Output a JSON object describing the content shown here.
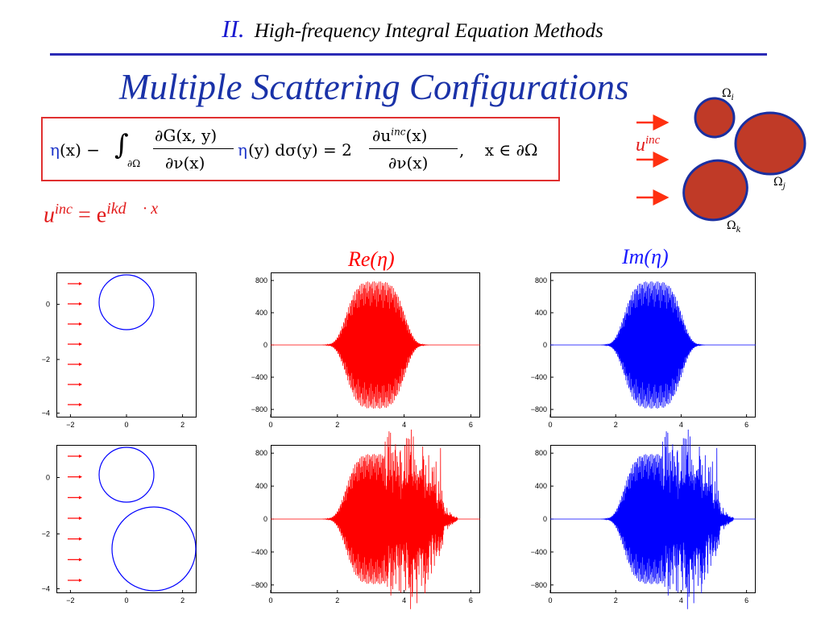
{
  "header": {
    "section_number": "II.",
    "section_title": "High-frequency Integral Equation Methods"
  },
  "slide_title": "Multiple Scattering Configurations",
  "equation": {
    "eta_x": "η(x) − ",
    "integral_sub": "∂Ω",
    "frac1_num": "∂G(x, y)",
    "frac1_den": "∂ν(x)",
    "eta_y": "η(y) dσ(y) = 2",
    "frac2_num": "∂u",
    "frac2_num_sup": "inc",
    "frac2_num_tail": "(x)",
    "frac2_den": "∂ν(x)",
    "domain": ",    x ∈ ∂Ω"
  },
  "incident_eq": {
    "u": "u",
    "sup": "inc",
    "eq": " = e",
    "exp": "ikd⃗ · x"
  },
  "diagram": {
    "u_label": "u",
    "u_sup": "inc",
    "omega_i": "Ω",
    "omega_i_sub": "i",
    "omega_j": "Ω",
    "omega_j_sub": "j",
    "omega_k": "Ω",
    "omega_k_sub": "k"
  },
  "plot_titles": {
    "re": "Re(η)",
    "im": "Im(η)"
  },
  "colors": {
    "red": "#ff0000",
    "blue": "#0000ff",
    "title": "#1a32a8",
    "obstacle": "#c03a27",
    "obstacle_edge": "#1a2fa0"
  },
  "geometry_axes": {
    "x_ticks": [
      "−2",
      "0",
      "2"
    ],
    "y_ticks_row1": [
      "0",
      "−2",
      "−4"
    ],
    "y_ticks_row2": [
      "0",
      "−2",
      "−4"
    ]
  },
  "chart_data": [
    {
      "type": "line",
      "title": "Re(η)",
      "series": [
        {
          "values_desc": "oscillatory density, single scatterer"
        }
      ],
      "x_ticks": [
        "0",
        "2",
        "4",
        "6"
      ],
      "y_ticks": [
        "800",
        "400",
        "0",
        "−400",
        "−800"
      ],
      "xlim": [
        0,
        6.28
      ],
      "ylim": [
        -900,
        900
      ]
    },
    {
      "type": "line",
      "title": "Im(η)",
      "x_ticks": [
        "0",
        "2",
        "4",
        "6"
      ],
      "y_ticks": [
        "800",
        "400",
        "0",
        "−400",
        "−800"
      ],
      "xlim": [
        0,
        6.28
      ],
      "ylim": [
        -900,
        900
      ]
    },
    {
      "type": "line",
      "title": "Re(η)",
      "x_ticks": [
        "0",
        "2",
        "4",
        "6"
      ],
      "y_ticks": [
        "800",
        "400",
        "0",
        "−400",
        "−800"
      ],
      "xlim": [
        0,
        6.28
      ],
      "ylim": [
        -900,
        900
      ]
    },
    {
      "type": "line",
      "title": "Im(η)",
      "x_ticks": [
        "0",
        "2",
        "4",
        "6"
      ],
      "y_ticks": [
        "800",
        "400",
        "0",
        "−400",
        "−800"
      ],
      "xlim": [
        0,
        6.28
      ],
      "ylim": [
        -900,
        900
      ]
    }
  ]
}
